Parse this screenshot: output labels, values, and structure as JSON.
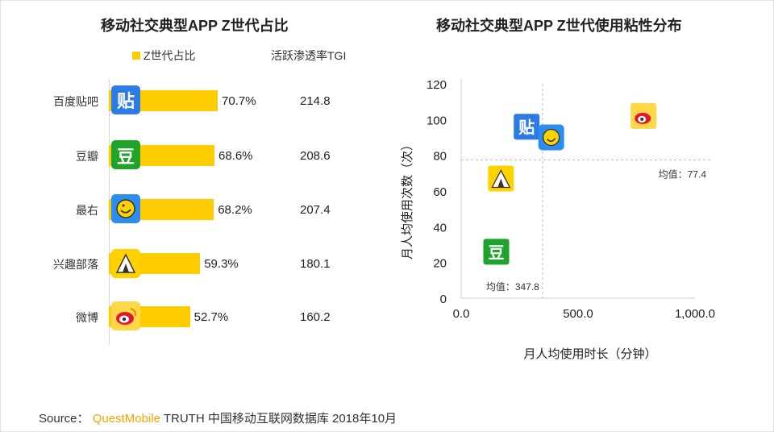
{
  "chart_data": [
    {
      "type": "bar",
      "title": "移动社交典型APP Z世代占比",
      "legend": [
        "Z世代占比",
        "活跃渗透率TGI"
      ],
      "categories": [
        "百度贴吧",
        "豆瓣",
        "最右",
        "兴趣部落",
        "微博"
      ],
      "values": [
        70.7,
        68.6,
        68.2,
        59.3,
        52.7
      ],
      "value_labels": [
        "70.7%",
        "68.6%",
        "68.2%",
        "59.3%",
        "52.7%"
      ],
      "tgi_labels": [
        "214.8",
        "208.6",
        "207.4",
        "180.1",
        "160.2"
      ],
      "color": "#FFCC00"
    },
    {
      "type": "scatter",
      "title": "移动社交典型APP Z世代使用粘性分布",
      "xlabel": "月人均使用时长（分钟）",
      "ylabel": "月人均使用次数（次）",
      "xlim": [
        0,
        1000
      ],
      "ylim": [
        0,
        120
      ],
      "x_ticks": [
        "0.0",
        "500.0",
        "1,000.0"
      ],
      "x_tick_values": [
        0,
        500,
        1000
      ],
      "y_ticks": [
        "0",
        "20",
        "40",
        "60",
        "80",
        "100",
        "120"
      ],
      "y_tick_values": [
        0,
        20,
        40,
        60,
        80,
        100,
        120
      ],
      "points": [
        {
          "name": "百度贴吧",
          "icon": "tieba-icon",
          "x": 280,
          "y": 96
        },
        {
          "name": "最右",
          "icon": "zuiyou-icon",
          "x": 385,
          "y": 90
        },
        {
          "name": "微博",
          "icon": "weibo-icon",
          "x": 780,
          "y": 102
        },
        {
          "name": "兴趣部落",
          "icon": "buluo-icon",
          "x": 170,
          "y": 67
        },
        {
          "name": "豆瓣",
          "icon": "douban-icon",
          "x": 150,
          "y": 26
        }
      ],
      "mean_x": 347.8,
      "mean_y": 77.4,
      "mean_x_label": "均值：347.8",
      "mean_y_label": "均值：77.4"
    }
  ],
  "icons": {
    "tieba_glyph": "贴",
    "douban_glyph": "豆"
  },
  "source": {
    "prefix": "Source：",
    "brand": "QuestMobile",
    "text": "TRUTH 中国移动互联网数据库 2018年10月"
  },
  "colors": {
    "bar": "#FFCC00",
    "tieba": "#2D7BE5",
    "douban": "#1FA32A",
    "zuiyou": "#2D8CF0",
    "weibo": "#E6162D"
  }
}
